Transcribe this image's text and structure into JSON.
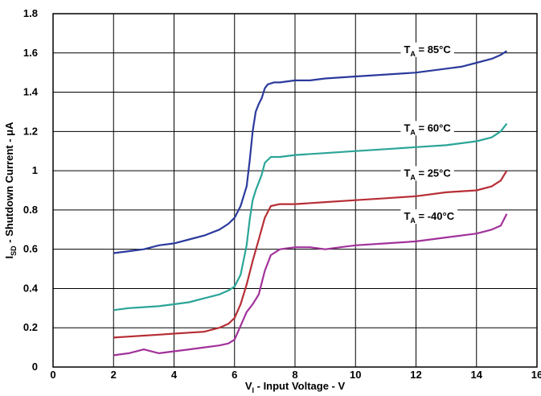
{
  "chart_data": {
    "type": "line",
    "xlabel": {
      "main": "V",
      "sub": "I",
      "rest": " - Input Voltage - V"
    },
    "ylabel": {
      "main": "I",
      "sub": "SD",
      "rest": " - Shutdown Current - μA"
    },
    "xlim": [
      0,
      16
    ],
    "ylim": [
      0,
      1.8
    ],
    "xticks": [
      "0",
      "2",
      "4",
      "6",
      "8",
      "10",
      "12",
      "14",
      "16"
    ],
    "yticks": [
      "0",
      "0.2",
      "0.4",
      "0.6",
      "0.8",
      "1",
      "1.2",
      "1.4",
      "1.6",
      "1.8"
    ],
    "grid": true,
    "series": [
      {
        "name": "85°C",
        "label_main": "T",
        "label_sub": "A",
        "label_rest": " = 85°C",
        "label_at": [
          11.6,
          1.6
        ],
        "color": "#2b3a9c",
        "points": [
          [
            2.0,
            0.58
          ],
          [
            2.5,
            0.59
          ],
          [
            3.0,
            0.6
          ],
          [
            3.5,
            0.62
          ],
          [
            4.0,
            0.63
          ],
          [
            4.5,
            0.65
          ],
          [
            5.0,
            0.67
          ],
          [
            5.5,
            0.7
          ],
          [
            5.8,
            0.73
          ],
          [
            6.0,
            0.76
          ],
          [
            6.2,
            0.82
          ],
          [
            6.4,
            0.92
          ],
          [
            6.5,
            1.05
          ],
          [
            6.6,
            1.2
          ],
          [
            6.7,
            1.3
          ],
          [
            6.8,
            1.34
          ],
          [
            6.9,
            1.37
          ],
          [
            7.0,
            1.42
          ],
          [
            7.1,
            1.44
          ],
          [
            7.3,
            1.45
          ],
          [
            7.5,
            1.45
          ],
          [
            8.0,
            1.46
          ],
          [
            8.5,
            1.46
          ],
          [
            9.0,
            1.47
          ],
          [
            10.0,
            1.48
          ],
          [
            11.0,
            1.49
          ],
          [
            12.0,
            1.5
          ],
          [
            13.0,
            1.52
          ],
          [
            13.5,
            1.53
          ],
          [
            14.0,
            1.55
          ],
          [
            14.5,
            1.57
          ],
          [
            14.8,
            1.59
          ],
          [
            15.0,
            1.61
          ]
        ]
      },
      {
        "name": "60°C",
        "label_main": "T",
        "label_sub": "A",
        "label_rest": " = 60°C",
        "label_at": [
          11.6,
          1.2
        ],
        "color": "#2aa597",
        "points": [
          [
            2.0,
            0.29
          ],
          [
            2.5,
            0.3
          ],
          [
            3.0,
            0.305
          ],
          [
            3.5,
            0.31
          ],
          [
            4.0,
            0.32
          ],
          [
            4.5,
            0.33
          ],
          [
            5.0,
            0.35
          ],
          [
            5.5,
            0.37
          ],
          [
            5.8,
            0.39
          ],
          [
            6.0,
            0.41
          ],
          [
            6.2,
            0.47
          ],
          [
            6.4,
            0.62
          ],
          [
            6.5,
            0.75
          ],
          [
            6.6,
            0.85
          ],
          [
            6.7,
            0.9
          ],
          [
            6.8,
            0.94
          ],
          [
            6.9,
            0.98
          ],
          [
            7.0,
            1.04
          ],
          [
            7.2,
            1.07
          ],
          [
            7.5,
            1.07
          ],
          [
            8.0,
            1.08
          ],
          [
            9.0,
            1.09
          ],
          [
            10.0,
            1.1
          ],
          [
            11.0,
            1.11
          ],
          [
            12.0,
            1.12
          ],
          [
            13.0,
            1.13
          ],
          [
            14.0,
            1.15
          ],
          [
            14.5,
            1.17
          ],
          [
            14.8,
            1.2
          ],
          [
            15.0,
            1.24
          ]
        ]
      },
      {
        "name": "25°C",
        "label_main": "T",
        "label_sub": "A",
        "label_rest": " = 25°C",
        "label_at": [
          11.6,
          0.97
        ],
        "color": "#b72e36",
        "points": [
          [
            2.0,
            0.15
          ],
          [
            2.5,
            0.155
          ],
          [
            3.0,
            0.16
          ],
          [
            3.5,
            0.165
          ],
          [
            4.0,
            0.17
          ],
          [
            4.5,
            0.175
          ],
          [
            5.0,
            0.18
          ],
          [
            5.5,
            0.2
          ],
          [
            5.8,
            0.22
          ],
          [
            6.0,
            0.25
          ],
          [
            6.2,
            0.32
          ],
          [
            6.4,
            0.42
          ],
          [
            6.6,
            0.54
          ],
          [
            6.8,
            0.65
          ],
          [
            7.0,
            0.76
          ],
          [
            7.2,
            0.82
          ],
          [
            7.5,
            0.83
          ],
          [
            8.0,
            0.83
          ],
          [
            9.0,
            0.84
          ],
          [
            10.0,
            0.85
          ],
          [
            11.0,
            0.86
          ],
          [
            12.0,
            0.87
          ],
          [
            13.0,
            0.89
          ],
          [
            14.0,
            0.9
          ],
          [
            14.5,
            0.92
          ],
          [
            14.8,
            0.95
          ],
          [
            15.0,
            1.0
          ]
        ]
      },
      {
        "name": "-40°C",
        "label_main": "T",
        "label_sub": "A",
        "label_rest": " = -40°C",
        "label_at": [
          11.6,
          0.75
        ],
        "color": "#a1329b",
        "points": [
          [
            2.0,
            0.06
          ],
          [
            2.5,
            0.07
          ],
          [
            3.0,
            0.09
          ],
          [
            3.5,
            0.07
          ],
          [
            4.0,
            0.08
          ],
          [
            4.5,
            0.09
          ],
          [
            5.0,
            0.1
          ],
          [
            5.5,
            0.11
          ],
          [
            5.8,
            0.12
          ],
          [
            6.0,
            0.14
          ],
          [
            6.2,
            0.21
          ],
          [
            6.4,
            0.28
          ],
          [
            6.6,
            0.32
          ],
          [
            6.8,
            0.37
          ],
          [
            7.0,
            0.49
          ],
          [
            7.2,
            0.57
          ],
          [
            7.5,
            0.6
          ],
          [
            8.0,
            0.61
          ],
          [
            8.5,
            0.61
          ],
          [
            9.0,
            0.6
          ],
          [
            9.5,
            0.61
          ],
          [
            10.0,
            0.62
          ],
          [
            11.0,
            0.63
          ],
          [
            12.0,
            0.64
          ],
          [
            13.0,
            0.66
          ],
          [
            14.0,
            0.68
          ],
          [
            14.5,
            0.7
          ],
          [
            14.8,
            0.72
          ],
          [
            15.0,
            0.78
          ]
        ]
      }
    ]
  }
}
